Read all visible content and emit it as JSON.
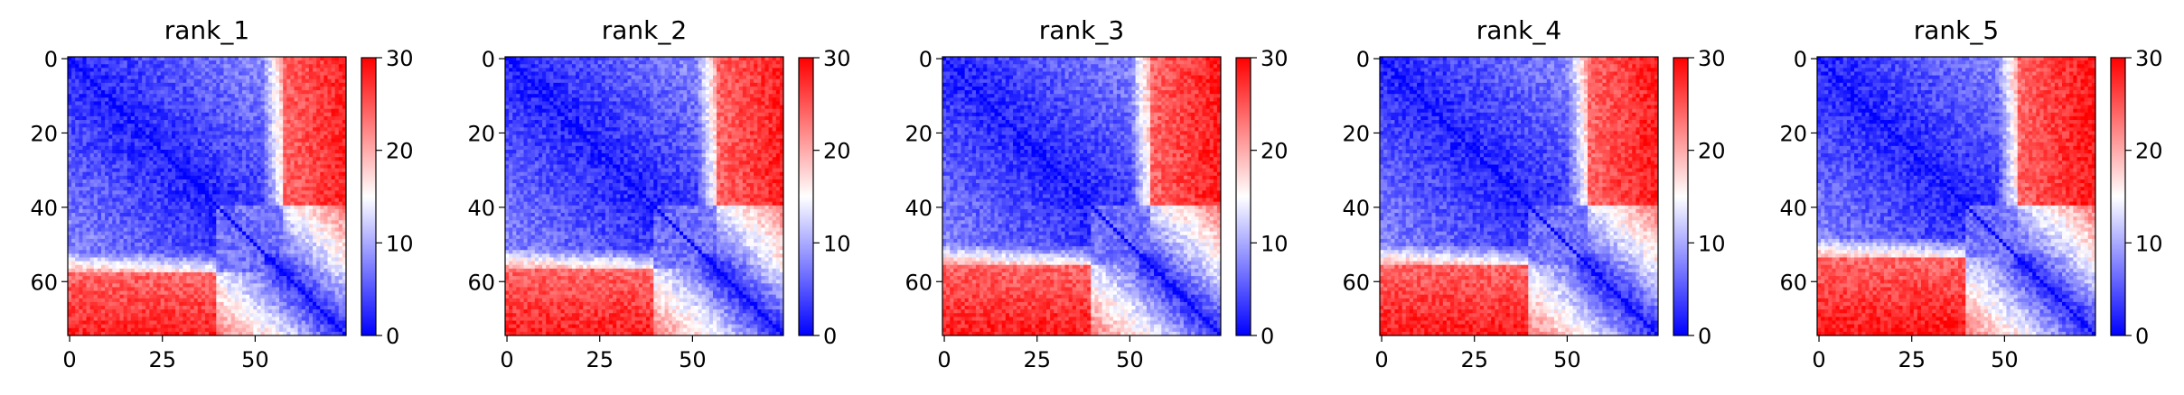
{
  "chart_data": [
    {
      "type": "heatmap",
      "title": "rank_1",
      "x_ticks": [
        0,
        25,
        50
      ],
      "y_ticks": [
        0,
        20,
        40,
        60
      ],
      "xlim": [
        -0.5,
        74.5
      ],
      "ylim": [
        74.5,
        -0.5
      ],
      "colorbar": {
        "ticks": [
          0,
          10,
          20,
          30
        ],
        "range": [
          0,
          30
        ],
        "colormap": "bwr"
      },
      "boundary_x": 58,
      "noise_seed": 1
    },
    {
      "type": "heatmap",
      "title": "rank_2",
      "x_ticks": [
        0,
        25,
        50
      ],
      "y_ticks": [
        0,
        20,
        40,
        60
      ],
      "xlim": [
        -0.5,
        74.5
      ],
      "ylim": [
        74.5,
        -0.5
      ],
      "colorbar": {
        "ticks": [
          0,
          10,
          20,
          30
        ],
        "range": [
          0,
          30
        ],
        "colormap": "bwr"
      },
      "boundary_x": 57,
      "noise_seed": 2
    },
    {
      "type": "heatmap",
      "title": "rank_3",
      "x_ticks": [
        0,
        25,
        50
      ],
      "y_ticks": [
        0,
        20,
        40,
        60
      ],
      "xlim": [
        -0.5,
        74.5
      ],
      "ylim": [
        74.5,
        -0.5
      ],
      "colorbar": {
        "ticks": [
          0,
          10,
          20,
          30
        ],
        "range": [
          0,
          30
        ],
        "colormap": "bwr"
      },
      "boundary_x": 56,
      "noise_seed": 3
    },
    {
      "type": "heatmap",
      "title": "rank_4",
      "x_ticks": [
        0,
        25,
        50
      ],
      "y_ticks": [
        0,
        20,
        40,
        60
      ],
      "xlim": [
        -0.5,
        74.5
      ],
      "ylim": [
        74.5,
        -0.5
      ],
      "colorbar": {
        "ticks": [
          0,
          10,
          20,
          30
        ],
        "range": [
          0,
          30
        ],
        "colormap": "bwr"
      },
      "boundary_x": 56,
      "noise_seed": 4
    },
    {
      "type": "heatmap",
      "title": "rank_5",
      "x_ticks": [
        0,
        25,
        50
      ],
      "y_ticks": [
        0,
        20,
        40,
        60
      ],
      "xlim": [
        -0.5,
        74.5
      ],
      "ylim": [
        74.5,
        -0.5
      ],
      "colorbar": {
        "ticks": [
          0,
          10,
          20,
          30
        ],
        "range": [
          0,
          30
        ],
        "colormap": "bwr"
      },
      "boundary_x": 54,
      "noise_seed": 5
    }
  ]
}
